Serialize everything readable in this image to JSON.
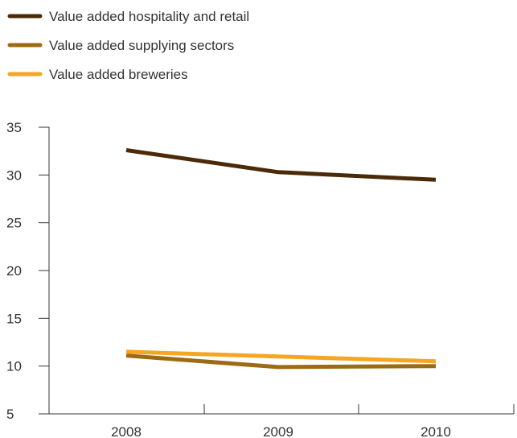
{
  "chart_data": {
    "type": "line",
    "title": "",
    "xlabel": "",
    "ylabel": "",
    "categories": [
      "2008",
      "2009",
      "2010"
    ],
    "ylim": [
      5,
      35
    ],
    "yticks": [
      5,
      10,
      15,
      20,
      25,
      30,
      35
    ],
    "grid": false,
    "legend_position": "top-left",
    "series": [
      {
        "name": "Value added hospitality and retail",
        "color": "#4a2a08",
        "values": [
          32.6,
          30.3,
          29.5
        ]
      },
      {
        "name": "Value added supplying sectors",
        "color": "#9c6b12",
        "values": [
          11.1,
          9.9,
          10.0
        ]
      },
      {
        "name": "Value added breweries",
        "color": "#f5a623",
        "values": [
          11.5,
          11.0,
          10.5
        ]
      }
    ]
  }
}
